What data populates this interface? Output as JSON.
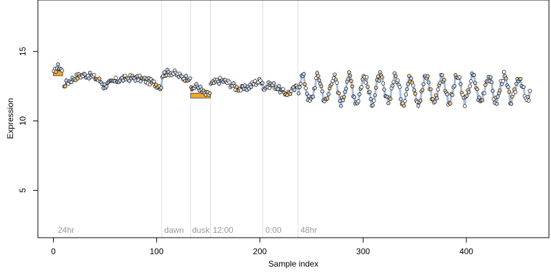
{
  "chart_data": {
    "type": "scatter",
    "title": "",
    "xlabel": "Sample index",
    "ylabel": "Expression",
    "xlim": [
      -15,
      480
    ],
    "ylim": [
      1.6,
      18.7
    ],
    "x_ticks": [
      0,
      100,
      200,
      300,
      400
    ],
    "y_ticks": [
      5,
      10,
      15
    ],
    "grid": false,
    "legend": "none",
    "phase_markers": [
      {
        "x": 105,
        "label": "dawn"
      },
      {
        "x": 133,
        "label": "dusk"
      },
      {
        "x": 152,
        "label": ""
      },
      {
        "x": 203,
        "label": ""
      },
      {
        "x": 237,
        "label": ""
      }
    ],
    "segment_labels": [
      {
        "x": 3,
        "label": "24hr"
      },
      {
        "x": 106,
        "label": "dawn"
      },
      {
        "x": 133,
        "label": "dusk"
      },
      {
        "x": 153,
        "label": "12:00"
      },
      {
        "x": 204,
        "label": "0:00"
      },
      {
        "x": 238,
        "label": "48hr"
      }
    ],
    "colors": {
      "point_stroke": "#000000",
      "point_fill_light": "#c8d8ee",
      "point_fill_white": "#ffffff",
      "point_fill_orange": "#f5c87a",
      "fit_line": "#7f9fd8",
      "bar_fill": "#f0a830",
      "marker_line": "#dddddd",
      "marker_text": "#999999"
    },
    "regions": [
      {
        "x_start": 0,
        "x_end": 9,
        "y_base": 13.4,
        "amplitude": 0.5,
        "period": 18
      },
      {
        "x_start": 10,
        "x_end": 48,
        "y_base": 12.6,
        "amplitude": 0.7,
        "period": 80
      },
      {
        "x_start": 48,
        "x_end": 105,
        "y_base": 12.5,
        "amplitude": 0.6,
        "period": 110
      },
      {
        "x_start": 105,
        "x_end": 133,
        "y_base": 13.3,
        "amplitude": 0.2,
        "period": 30
      },
      {
        "x_start": 133,
        "x_end": 152,
        "y_base": 12.2,
        "amplitude": 0.3,
        "period": 20
      },
      {
        "x_start": 152,
        "x_end": 203,
        "y_base": 12.6,
        "amplitude": 0.3,
        "period": 40
      },
      {
        "x_start": 203,
        "x_end": 237,
        "y_base": 12.3,
        "amplitude": 0.3,
        "period": 30
      },
      {
        "x_start": 237,
        "x_end": 462,
        "y_base": 12.3,
        "amplitude": 0.9,
        "period": 15
      }
    ],
    "bars": [
      {
        "x_start": 0,
        "x_end": 9,
        "value": 13.6
      },
      {
        "x_start": 133,
        "x_end": 152,
        "value": 12.0
      },
      {
        "x_start": 133,
        "x_end": 135,
        "value": 12.5
      }
    ],
    "fit_segments": [
      {
        "x_start": 0,
        "x_end": 9
      },
      {
        "x_start": 10,
        "x_end": 133
      },
      {
        "x_start": 133,
        "x_end": 152
      },
      {
        "x_start": 152,
        "x_end": 237
      },
      {
        "x_start": 237,
        "x_end": 462
      }
    ]
  }
}
